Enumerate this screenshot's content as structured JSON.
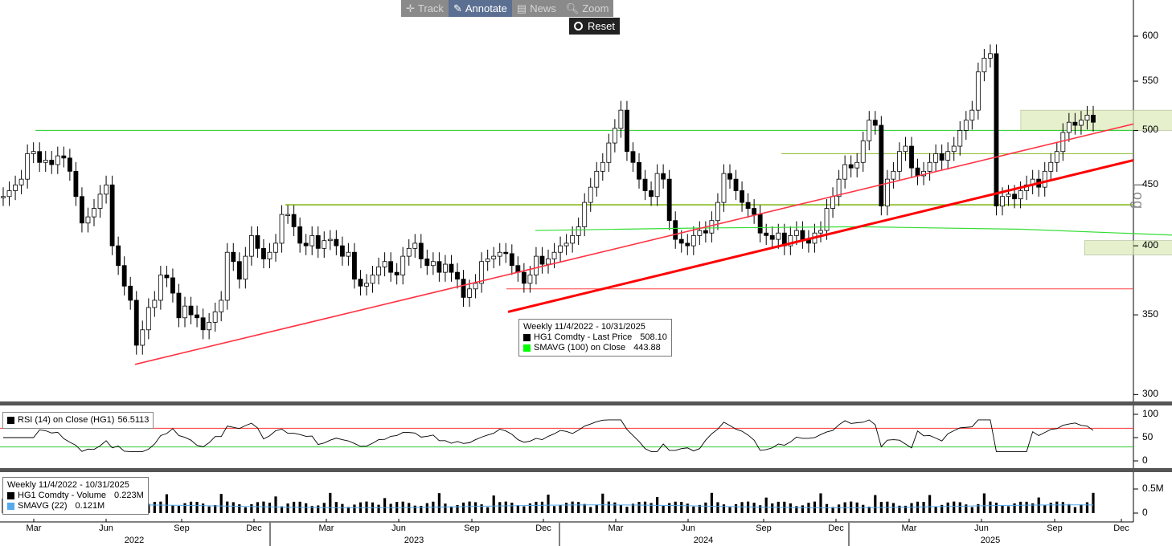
{
  "toolbar": {
    "track": "Track",
    "annotate": "Annotate",
    "news": "News",
    "zoom": "Zoom",
    "reset": "Reset"
  },
  "scale_label": "Log",
  "price_legend": {
    "header": "Weekly 11/4/2022 - 10/31/2025",
    "series1": "HG1 Comdty - Last Price",
    "series1_value": "508.10",
    "series2": "SMAVG (100)  on Close",
    "series2_value": "443.88",
    "color1": "#000000",
    "color2": "#00ff00"
  },
  "rsi_legend": {
    "label": "RSI (14)  on Close (HG1)",
    "value": "56.5113"
  },
  "volume_legend": {
    "header": "Weekly 11/4/2022 - 10/31/2025",
    "series1": "HG1 Comdty - Volume",
    "series1_value": "0.223M",
    "series2": "SMAVG (22)",
    "series2_value": "0.121M"
  },
  "y_ticks": [
    "600",
    "550",
    "500",
    "450",
    "400",
    "350",
    "300"
  ],
  "rsi_ticks": [
    "100",
    "50",
    "0"
  ],
  "vol_ticks": [
    "0.5M",
    "0"
  ],
  "x_months": [
    "Mar",
    "Jun",
    "Sep",
    "Dec",
    "Mar",
    "Jun",
    "Sep",
    "Dec",
    "Mar",
    "Jun",
    "Sep",
    "Dec",
    "Mar",
    "Jun",
    "Sep",
    "Dec"
  ],
  "x_years": [
    "2022",
    "2023",
    "2024",
    "2025"
  ],
  "colors": {
    "trend": "#ff0000",
    "sma": "#33dd33",
    "box": "#dce9b8",
    "up": "#ffffff",
    "down": "#000000",
    "vol_sma": "#55aaee"
  },
  "chart_data": {
    "type": "candlestick",
    "title": "Weekly 11/4/2022 - 10/31/2025",
    "ylabel": "Log",
    "yscale": "log",
    "ylim": [
      296,
      618
    ],
    "close_series": [
      440,
      445,
      450,
      455,
      478,
      480,
      470,
      472,
      468,
      476,
      474,
      462,
      440,
      418,
      423,
      430,
      442,
      450,
      400,
      385,
      370,
      360,
      330,
      340,
      355,
      360,
      378,
      376,
      365,
      348,
      356,
      350,
      348,
      340,
      345,
      352,
      360,
      395,
      388,
      375,
      392,
      408,
      398,
      390,
      395,
      402,
      425,
      425,
      415,
      402,
      400,
      408,
      398,
      404,
      405,
      400,
      392,
      395,
      375,
      370,
      372,
      378,
      384,
      388,
      380,
      378,
      392,
      398,
      402,
      390,
      385,
      388,
      380,
      386,
      380,
      375,
      362,
      368,
      372,
      388,
      390,
      392,
      395,
      394,
      385,
      380,
      372,
      378,
      392,
      386,
      390,
      395,
      400,
      402,
      408,
      415,
      435,
      448,
      462,
      470,
      488,
      502,
      520,
      480,
      470,
      455,
      445,
      440,
      460,
      455,
      420,
      405,
      402,
      400,
      408,
      412,
      410,
      420,
      435,
      460,
      455,
      445,
      435,
      430,
      425,
      410,
      408,
      405,
      410,
      400,
      408,
      412,
      405,
      402,
      410,
      412,
      430,
      440,
      455,
      468,
      465,
      470,
      490,
      510,
      505,
      432,
      455,
      462,
      480,
      485,
      465,
      458,
      462,
      470,
      478,
      472,
      480,
      485,
      500,
      510,
      520,
      560,
      575,
      580,
      432,
      440,
      442,
      438,
      445,
      450,
      455,
      448,
      462,
      470,
      480,
      498,
      508,
      505,
      510,
      515,
      508
    ],
    "sma100": [
      null,
      null,
      null,
      null,
      null,
      null,
      null,
      null,
      null,
      null,
      null,
      null,
      null,
      null,
      null,
      null,
      null,
      null,
      null,
      null,
      null,
      null,
      null,
      null,
      null,
      null,
      null,
      null,
      null,
      null,
      null,
      null,
      null,
      null,
      null,
      null,
      null,
      null,
      null,
      null,
      null,
      null,
      null,
      null,
      null,
      null,
      null,
      null,
      null,
      null,
      null,
      null,
      null,
      null,
      null,
      null,
      null,
      null,
      null,
      null,
      null,
      null,
      null,
      null,
      null,
      null,
      null,
      null,
      null,
      null,
      null,
      null,
      null,
      null,
      null,
      null,
      null,
      null,
      null,
      null,
      null,
      null,
      null,
      null,
      null,
      null,
      null,
      null,
      null,
      null,
      null,
      null,
      null,
      null,
      null,
      null,
      null,
      null,
      null,
      null,
      null,
      null,
      null,
      null,
      null,
      null,
      null,
      null,
      null,
      null,
      null,
      null,
      null,
      null,
      null,
      null,
      null,
      null,
      null,
      null,
      null,
      null,
      null,
      null,
      null,
      null,
      null,
      null,
      null,
      null,
      null,
      null,
      null,
      null,
      null,
      null,
      null,
      null,
      null,
      null,
      null,
      null,
      null,
      null,
      null,
      null,
      null,
      null,
      null,
      null,
      null,
      null,
      null,
      null,
      null,
      null,
      null,
      null,
      null,
      null,
      null,
      null,
      null,
      null,
      null,
      null,
      null,
      null,
      null,
      null,
      null,
      null,
      null,
      null,
      null,
      null,
      null,
      null,
      null,
      null,
      null,
      null,
      null
    ],
    "sma100_path": [
      [
        45,
        412
      ],
      [
        60,
        414
      ],
      [
        75,
        415
      ],
      [
        90,
        413
      ],
      [
        105,
        408
      ],
      [
        120,
        402
      ],
      [
        135,
        396
      ],
      [
        150,
        393
      ],
      [
        165,
        389
      ],
      [
        180,
        387
      ],
      [
        195,
        386
      ],
      [
        210,
        385
      ],
      [
        225,
        384
      ],
      [
        240,
        383
      ],
      [
        255,
        386
      ],
      [
        270,
        392
      ],
      [
        285,
        393
      ],
      [
        300,
        398
      ],
      [
        315,
        403
      ],
      [
        330,
        408
      ],
      [
        345,
        418
      ],
      [
        360,
        426
      ],
      [
        375,
        432
      ],
      [
        390,
        436
      ],
      [
        405,
        440
      ],
      [
        420,
        443
      ],
      [
        435,
        444
      ],
      [
        445,
        445
      ]
    ],
    "resistance_lines": [
      {
        "value": 500,
        "color": "green"
      },
      {
        "value": 478,
        "color": "olive"
      },
      {
        "value": 433,
        "color": "olive"
      },
      {
        "value": 368,
        "color": "red"
      }
    ],
    "trendlines": [
      {
        "from": [
          23,
          318
        ],
        "to": [
          175,
          500
        ],
        "color": "red",
        "width": 1.5
      },
      {
        "from": [
          85,
          351
        ],
        "to": [
          175,
          470
        ],
        "color": "red",
        "width": 3
      }
    ],
    "zones": [
      {
        "x": [
          108,
          138
        ],
        "y": [
          500,
          520
        ]
      },
      {
        "x": [
          115,
          148
        ],
        "y": [
          393,
          404
        ]
      }
    ],
    "rsi": {
      "ylim": [
        0,
        100
      ],
      "levels": [
        70,
        30
      ],
      "last": 56.5113
    },
    "volume": {
      "unit": "M",
      "last": 0.223,
      "sma22": 0.121
    }
  }
}
